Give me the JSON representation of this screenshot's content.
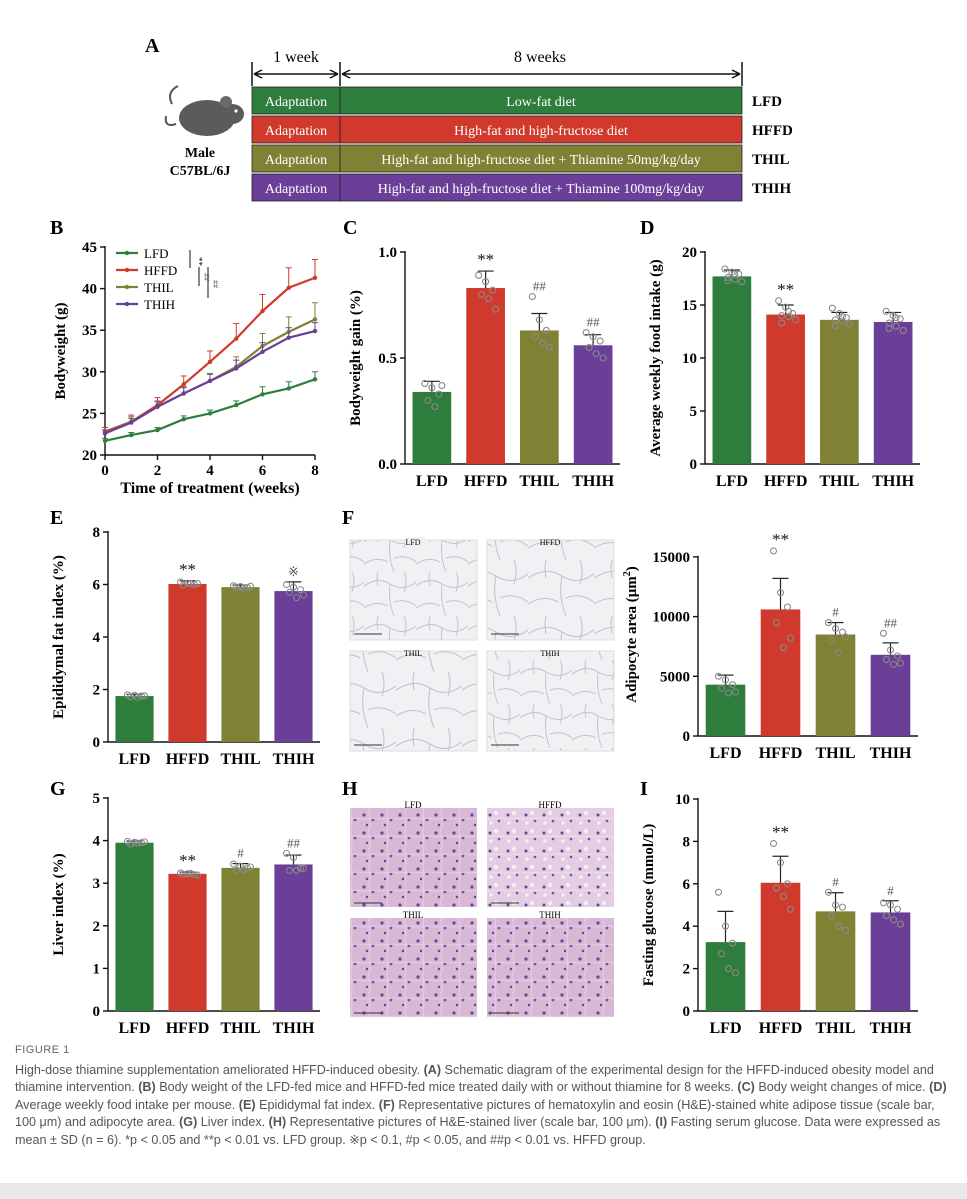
{
  "colors": {
    "LFD": "#2e7d3c",
    "HFFD": "#d03a2c",
    "THIL": "#7f8234",
    "THIH": "#6b3f98",
    "axis": "#111111"
  },
  "panelA": {
    "label": "A",
    "week1": "1 week",
    "week8": "8 weeks",
    "mouse_line1": "Male",
    "mouse_line2": "C57BL/6J",
    "rows": [
      {
        "adapt": "Adaptation",
        "diet": "Low-fat diet",
        "group": "LFD",
        "color": "#2e7d3c"
      },
      {
        "adapt": "Adaptation",
        "diet": "High-fat and high-fructose diet",
        "group": "HFFD",
        "color": "#d03a2c"
      },
      {
        "adapt": "Adaptation",
        "diet": "High-fat and high-fructose diet + Thiamine 50mg/kg/day",
        "group": "THIL",
        "color": "#7f8234"
      },
      {
        "adapt": "Adaptation",
        "diet": "High-fat and high-fructose diet + Thiamine 100mg/kg/day",
        "group": "THIH",
        "color": "#6b3f98"
      }
    ]
  },
  "micrographs": {
    "F": {
      "label": "F",
      "titles": [
        "LFD",
        "HFFD",
        "THIL",
        "THIH"
      ]
    },
    "H": {
      "label": "H",
      "titles": [
        "LFD",
        "HFFD",
        "THIL",
        "THIH"
      ]
    }
  },
  "chart_data": [
    {
      "id": "B",
      "label": "B",
      "type": "line",
      "xlabel": "Time of treatment (weeks)",
      "ylabel": "Bodyweight (g)",
      "x": [
        0,
        1,
        2,
        3,
        4,
        5,
        6,
        7,
        8
      ],
      "xticks": [
        0,
        2,
        4,
        6,
        8
      ],
      "ylim": [
        20,
        45
      ],
      "yticks": [
        20,
        25,
        30,
        35,
        40,
        45
      ],
      "legend_position": "top-left",
      "sig": [
        "**",
        "##",
        "##"
      ],
      "series": [
        {
          "name": "LFD",
          "values": [
            21.7,
            22.4,
            23.0,
            24.3,
            25.0,
            26.0,
            27.3,
            28.0,
            29.1
          ],
          "sd": [
            0.3,
            0.3,
            0.3,
            0.4,
            0.4,
            0.5,
            0.9,
            0.8,
            0.9
          ]
        },
        {
          "name": "HFFD",
          "values": [
            22.8,
            24.0,
            26.0,
            28.5,
            31.2,
            34.0,
            37.3,
            40.1,
            41.3
          ],
          "sd": [
            0.5,
            0.8,
            0.9,
            1.0,
            1.3,
            1.8,
            2.0,
            2.4,
            2.2
          ]
        },
        {
          "name": "THIL",
          "values": [
            22.6,
            24.0,
            25.8,
            27.4,
            28.9,
            30.6,
            33.1,
            34.8,
            36.3
          ],
          "sd": [
            0.4,
            0.6,
            0.7,
            0.8,
            0.9,
            1.2,
            1.5,
            1.8,
            2.0
          ]
        },
        {
          "name": "THIH",
          "values": [
            22.6,
            23.9,
            25.8,
            27.4,
            28.9,
            30.4,
            32.4,
            34.1,
            34.9
          ],
          "sd": [
            0.4,
            0.5,
            0.6,
            0.7,
            0.8,
            1.0,
            1.1,
            1.2,
            1.0
          ]
        }
      ]
    },
    {
      "id": "C",
      "label": "C",
      "type": "bar",
      "ylabel": "Bodyweight gain (%)",
      "categories": [
        "LFD",
        "HFFD",
        "THIL",
        "THIH"
      ],
      "values": [
        0.34,
        0.83,
        0.63,
        0.56
      ],
      "sd": [
        0.05,
        0.08,
        0.08,
        0.05
      ],
      "ylim": [
        0,
        1.0
      ],
      "yticks": [
        0.0,
        0.5,
        1.0
      ],
      "ydec": 1,
      "sig": [
        "",
        "**",
        "##",
        "##"
      ],
      "points": [
        [
          0.38,
          0.36,
          0.33,
          0.3,
          0.27,
          0.37
        ],
        [
          0.89,
          0.86,
          0.82,
          0.8,
          0.78,
          0.73
        ],
        [
          0.79,
          0.68,
          0.63,
          0.6,
          0.57,
          0.55
        ],
        [
          0.62,
          0.6,
          0.58,
          0.55,
          0.52,
          0.5
        ]
      ]
    },
    {
      "id": "D",
      "label": "D",
      "type": "bar",
      "ylabel": "Average weekly food intake (g)",
      "categories": [
        "LFD",
        "HFFD",
        "THIL",
        "THIH"
      ],
      "values": [
        17.7,
        14.1,
        13.6,
        13.4
      ],
      "sd": [
        0.6,
        0.9,
        0.7,
        0.9
      ],
      "ylim": [
        0,
        20
      ],
      "yticks": [
        0,
        5,
        10,
        15,
        20
      ],
      "ydec": 0,
      "sig": [
        "",
        "**",
        "",
        ""
      ],
      "points": [
        [
          18.4,
          18.1,
          17.9,
          17.6,
          17.4,
          17.2,
          17.3,
          17.9
        ],
        [
          15.4,
          14.8,
          14.2,
          14.0,
          13.9,
          13.6,
          13.3,
          14.4
        ],
        [
          14.7,
          14.2,
          13.8,
          13.6,
          13.5,
          13.2,
          13.0,
          13.9
        ],
        [
          14.4,
          14.0,
          13.7,
          13.3,
          13.0,
          12.6,
          12.8,
          13.8
        ]
      ]
    },
    {
      "id": "E",
      "label": "E",
      "type": "bar",
      "ylabel": "Epididymal fat index (%)",
      "categories": [
        "LFD",
        "HFFD",
        "THIL",
        "THIH"
      ],
      "values": [
        1.75,
        6.02,
        5.9,
        5.75
      ],
      "sd": [
        0.07,
        0.12,
        0.08,
        0.35
      ],
      "ylim": [
        0,
        8
      ],
      "yticks": [
        0,
        2,
        4,
        6,
        8
      ],
      "ydec": 0,
      "sig": [
        "",
        "**",
        "",
        "※"
      ],
      "points": [
        [
          1.8,
          1.78,
          1.75,
          1.72,
          1.7,
          1.76
        ],
        [
          6.1,
          6.05,
          6.0,
          5.98,
          6.02,
          6.04
        ],
        [
          5.95,
          5.92,
          5.88,
          5.9,
          5.86,
          5.93
        ],
        [
          6.0,
          5.9,
          5.8,
          5.7,
          5.5,
          5.6
        ]
      ]
    },
    {
      "id": "F",
      "label": "",
      "type": "bar",
      "ylabel": "Adipocyte area (μm²)",
      "categories": [
        "LFD",
        "HFFD",
        "THIL",
        "THIH"
      ],
      "values": [
        4300,
        10600,
        8500,
        6800
      ],
      "sd": [
        800,
        2600,
        1000,
        1000
      ],
      "ylim": [
        0,
        17000
      ],
      "yticks": [
        0,
        5000,
        10000,
        15000
      ],
      "ydec": 0,
      "sig": [
        "",
        "**",
        "#",
        "##"
      ],
      "points": [
        [
          5000,
          4700,
          4300,
          4000,
          3600,
          3700
        ],
        [
          15500,
          12000,
          10800,
          9500,
          7400,
          8200
        ],
        [
          9500,
          9000,
          8700,
          8000,
          7000,
          8300
        ],
        [
          8600,
          7200,
          6700,
          6400,
          6000,
          6100
        ]
      ]
    },
    {
      "id": "G",
      "label": "G",
      "type": "bar",
      "ylabel": "Liver index (%)",
      "categories": [
        "LFD",
        "HFFD",
        "THIL",
        "THIH"
      ],
      "values": [
        3.95,
        3.22,
        3.36,
        3.44
      ],
      "sd": [
        0.04,
        0.04,
        0.1,
        0.22
      ],
      "ylim": [
        0,
        5
      ],
      "yticks": [
        0,
        1,
        2,
        3,
        4,
        5
      ],
      "ydec": 0,
      "sig": [
        "",
        "**",
        "#",
        "##"
      ],
      "points": [
        [
          3.98,
          3.96,
          3.95,
          3.92,
          3.94,
          3.97
        ],
        [
          3.24,
          3.22,
          3.2,
          3.21,
          3.23,
          3.19
        ],
        [
          3.45,
          3.4,
          3.35,
          3.3,
          3.32,
          3.38
        ],
        [
          3.7,
          3.6,
          3.35,
          3.3,
          3.3,
          3.35
        ]
      ]
    },
    {
      "id": "I",
      "label": "I",
      "type": "bar",
      "ylabel": "Fasting glucose (mmol/L)",
      "categories": [
        "LFD",
        "HFFD",
        "THIL",
        "THIH"
      ],
      "values": [
        3.25,
        6.05,
        4.7,
        4.65
      ],
      "sd": [
        1.45,
        1.25,
        0.88,
        0.55
      ],
      "ylim": [
        0,
        10
      ],
      "yticks": [
        0,
        2,
        4,
        6,
        8,
        10
      ],
      "ydec": 0,
      "sig": [
        "",
        "**",
        "#",
        "#"
      ],
      "points": [
        [
          5.6,
          4.0,
          3.2,
          2.7,
          2.0,
          1.8
        ],
        [
          7.9,
          7.0,
          6.0,
          5.8,
          5.4,
          4.8
        ],
        [
          5.6,
          5.0,
          4.9,
          4.5,
          4.0,
          3.8
        ],
        [
          5.1,
          5.0,
          4.8,
          4.5,
          4.3,
          4.1
        ]
      ]
    }
  ],
  "caption": {
    "label": "FIGURE 1",
    "segments": [
      {
        "b": false,
        "t": "High-dose thiamine supplementation ameliorated HFFD-induced obesity. "
      },
      {
        "b": true,
        "t": "(A)"
      },
      {
        "b": false,
        "t": " Schematic diagram of the experimental design for the HFFD-induced obesity model and thiamine intervention. "
      },
      {
        "b": true,
        "t": "(B)"
      },
      {
        "b": false,
        "t": " Body weight of the LFD-fed mice and HFFD-fed mice treated daily with or without thiamine for 8 weeks. "
      },
      {
        "b": true,
        "t": "(C)"
      },
      {
        "b": false,
        "t": " Body weight changes of mice. "
      },
      {
        "b": true,
        "t": "(D)"
      },
      {
        "b": false,
        "t": " Average weekly food intake per mouse. "
      },
      {
        "b": true,
        "t": "(E)"
      },
      {
        "b": false,
        "t": " Epididymal fat index. "
      },
      {
        "b": true,
        "t": "(F)"
      },
      {
        "b": false,
        "t": " Representative pictures of hematoxylin and eosin (H&E)-stained white adipose tissue (scale bar, 100 μm) and adipocyte area. "
      },
      {
        "b": true,
        "t": "(G)"
      },
      {
        "b": false,
        "t": " Liver index. "
      },
      {
        "b": true,
        "t": "(H)"
      },
      {
        "b": false,
        "t": " Representative pictures of H&E-stained liver (scale bar, 100 μm). "
      },
      {
        "b": true,
        "t": "(I)"
      },
      {
        "b": false,
        "t": " Fasting serum glucose. Data were expressed as mean ± SD (n = 6). *p < 0.05 and **p < 0.01 vs. LFD group. ※p < 0.1, #p < 0.05, and ##p < 0.01 vs. HFFD group."
      }
    ]
  }
}
